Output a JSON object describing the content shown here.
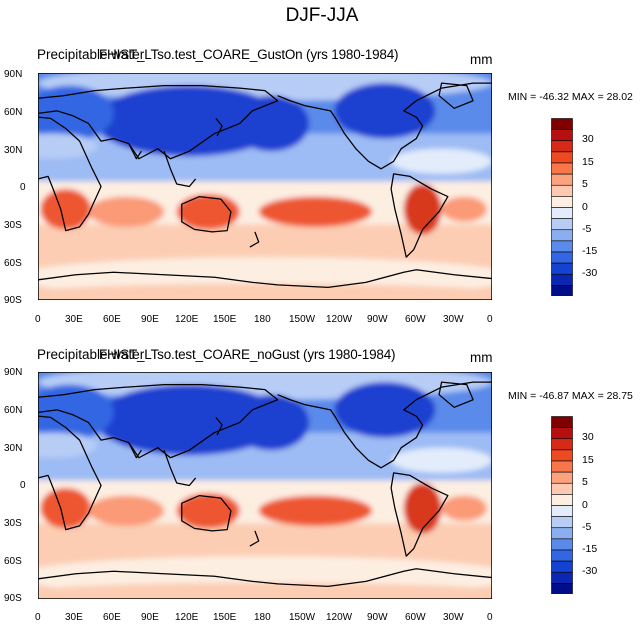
{
  "figure": {
    "title": "DJF-JJA",
    "variable_label": "Precipitable water",
    "units": "mm"
  },
  "axes": {
    "lat_labels": [
      "90N",
      "60N",
      "30N",
      "0",
      "30S",
      "60S",
      "90S"
    ],
    "lon_labels": [
      "0",
      "30E",
      "60E",
      "90E",
      "120E",
      "150E",
      "180",
      "150W",
      "120W",
      "90W",
      "60W",
      "30W",
      "0"
    ]
  },
  "panels": [
    {
      "case_label": "FHIST_LTso.test_COARE_GustOn (yrs 1980-1984)",
      "min_max": "MIN = -46.32 MAX =  28.02"
    },
    {
      "case_label": "FHIST_LTso.test_COARE_noGust (yrs 1980-1984)",
      "min_max": "MIN = -46.87 MAX =  28.75"
    }
  ],
  "colorbar": {
    "labels": [
      "30",
      "15",
      "5",
      "0",
      "-5",
      "-15",
      "-30"
    ],
    "colors": [
      "#800000",
      "#b50f0f",
      "#d52a16",
      "#ee4a22",
      "#f9764a",
      "#fba27f",
      "#fdcab1",
      "#fdeee2",
      "#e2ecfb",
      "#b7cdf6",
      "#8aaef0",
      "#5a8aea",
      "#3266e2",
      "#1442d2",
      "#0a26b2",
      "#000d88"
    ]
  },
  "map_colors": {
    "deep_blue": "#1a3fd0",
    "blue": "#3a6ae6",
    "light_blue": "#9dbbf4",
    "pale": "#fdeee2",
    "peach": "#fccdb3",
    "salmon": "#fa9a77",
    "red": "#ee5630",
    "dark_red": "#d8391a"
  }
}
